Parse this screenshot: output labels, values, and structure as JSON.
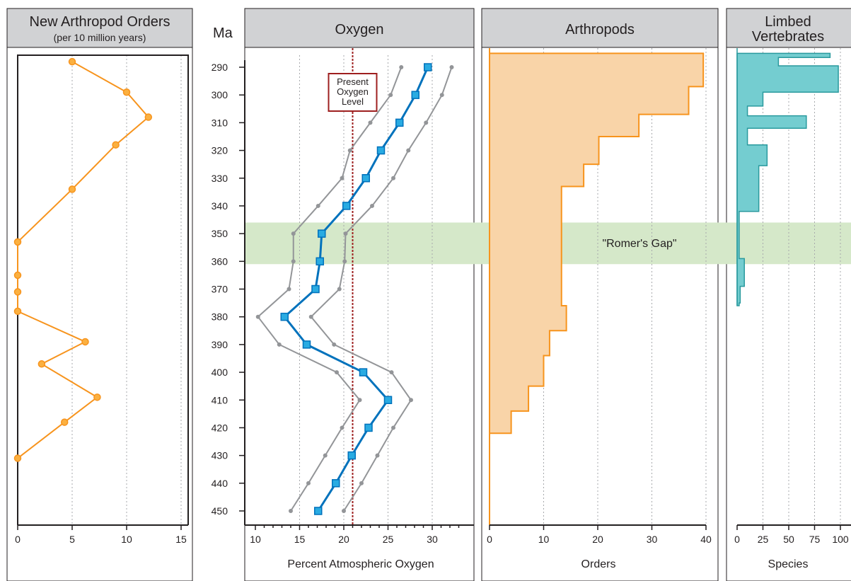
{
  "depth_label": "Ma",
  "gap_label": "\"Romer's Gap\"",
  "gap_range": [
    346,
    361
  ],
  "ages": [
    290,
    300,
    310,
    320,
    330,
    340,
    350,
    360,
    370,
    380,
    390,
    400,
    410,
    420,
    430,
    440,
    450
  ],
  "colors": {
    "arthropod_orders_line": "#f7941d",
    "arthropod_orders_marker": "#fbb040",
    "oxygen_line": "#0072bc",
    "oxygen_marker": "#29abe2",
    "oxygen_bounds": "#939598",
    "present_oxygen_line": "#9e1f1f",
    "arthropods_fill": "#f9d4a8",
    "arthropods_stroke": "#f7941d",
    "vertebrates_fill": "#74cdd0",
    "vertebrates_stroke": "#2a9a9e",
    "gap_band": "#d5e8c9",
    "header_fill": "#d1d2d4"
  },
  "chart_data": [
    {
      "id": "new-orders",
      "type": "line",
      "title": "New Arthropod Orders",
      "subtitle": "(per 10 million years)",
      "xlabel": "",
      "xlim": [
        0,
        15
      ],
      "xticks": [
        0,
        5,
        10,
        15
      ],
      "ylim": [
        285,
        455
      ],
      "y_reversed": true,
      "series": [
        {
          "points": [
            {
              "x": 5,
              "y": 288
            },
            {
              "x": 10,
              "y": 299
            },
            {
              "x": 12,
              "y": 308
            },
            {
              "x": 9,
              "y": 318
            },
            {
              "x": 5,
              "y": 334
            },
            {
              "x": 0,
              "y": 353
            },
            {
              "x": 0,
              "y": 365
            },
            {
              "x": 0,
              "y": 371
            },
            {
              "x": 0,
              "y": 378
            },
            {
              "x": 6.2,
              "y": 389
            },
            {
              "x": 2.2,
              "y": 397
            },
            {
              "x": 7.3,
              "y": 409
            },
            {
              "x": 4.3,
              "y": 418
            },
            {
              "x": 0,
              "y": 431
            }
          ]
        }
      ]
    },
    {
      "id": "oxygen",
      "type": "line",
      "title": "Oxygen",
      "xlabel": "Percent Atmospheric Oxygen",
      "xlim": [
        10,
        33
      ],
      "xticks": [
        10,
        15,
        20,
        25,
        30
      ],
      "ylim": [
        285,
        455
      ],
      "y_reversed": true,
      "yticks": [
        290,
        300,
        310,
        320,
        330,
        340,
        350,
        360,
        370,
        380,
        390,
        400,
        410,
        420,
        430,
        440,
        450
      ],
      "present_level": 21,
      "present_label": [
        "Present",
        "Oxygen",
        "Level"
      ],
      "series": [
        {
          "role": "estimate",
          "points": [
            {
              "x": 29.5,
              "y": 290
            },
            {
              "x": 28.1,
              "y": 300
            },
            {
              "x": 26.3,
              "y": 310
            },
            {
              "x": 24.2,
              "y": 320
            },
            {
              "x": 22.5,
              "y": 330
            },
            {
              "x": 20.3,
              "y": 340
            },
            {
              "x": 17.5,
              "y": 350
            },
            {
              "x": 17.3,
              "y": 360
            },
            {
              "x": 16.8,
              "y": 370
            },
            {
              "x": 13.3,
              "y": 380
            },
            {
              "x": 15.8,
              "y": 390
            },
            {
              "x": 22.2,
              "y": 400
            },
            {
              "x": 25.0,
              "y": 410
            },
            {
              "x": 22.8,
              "y": 420
            },
            {
              "x": 20.9,
              "y": 430
            },
            {
              "x": 19.1,
              "y": 440
            },
            {
              "x": 17.1,
              "y": 450
            }
          ]
        },
        {
          "role": "lower",
          "points": [
            {
              "x": 26.5,
              "y": 290
            },
            {
              "x": 25.3,
              "y": 300
            },
            {
              "x": 23.0,
              "y": 310
            },
            {
              "x": 20.7,
              "y": 320
            },
            {
              "x": 19.8,
              "y": 330
            },
            {
              "x": 17.1,
              "y": 340
            },
            {
              "x": 14.3,
              "y": 350
            },
            {
              "x": 14.3,
              "y": 360
            },
            {
              "x": 13.8,
              "y": 370
            },
            {
              "x": 10.3,
              "y": 380
            },
            {
              "x": 12.7,
              "y": 390
            },
            {
              "x": 19.2,
              "y": 400
            },
            {
              "x": 21.8,
              "y": 410
            },
            {
              "x": 19.8,
              "y": 420
            },
            {
              "x": 17.9,
              "y": 430
            },
            {
              "x": 16.0,
              "y": 440
            },
            {
              "x": 14.0,
              "y": 450
            }
          ]
        },
        {
          "role": "upper",
          "points": [
            {
              "x": 32.2,
              "y": 290
            },
            {
              "x": 31.1,
              "y": 300
            },
            {
              "x": 29.3,
              "y": 310
            },
            {
              "x": 27.3,
              "y": 320
            },
            {
              "x": 25.6,
              "y": 330
            },
            {
              "x": 23.2,
              "y": 340
            },
            {
              "x": 20.2,
              "y": 350
            },
            {
              "x": 20.1,
              "y": 360
            },
            {
              "x": 19.5,
              "y": 370
            },
            {
              "x": 16.3,
              "y": 380
            },
            {
              "x": 18.9,
              "y": 390
            },
            {
              "x": 25.4,
              "y": 400
            },
            {
              "x": 27.6,
              "y": 410
            },
            {
              "x": 25.6,
              "y": 420
            },
            {
              "x": 23.8,
              "y": 430
            },
            {
              "x": 22.0,
              "y": 440
            },
            {
              "x": 20.0,
              "y": 450
            }
          ]
        }
      ]
    },
    {
      "id": "arthropods",
      "type": "area",
      "title": "Arthropods",
      "xlabel": "Orders",
      "xlim": [
        0,
        40
      ],
      "xticks": [
        0,
        10,
        20,
        30,
        40
      ],
      "ylim": [
        285,
        455
      ],
      "y_reversed": true,
      "steps": [
        {
          "top": 285,
          "value": 39.5
        },
        {
          "top": 297,
          "value": 36.8
        },
        {
          "top": 307,
          "value": 27.6
        },
        {
          "top": 315,
          "value": 20.2
        },
        {
          "top": 325,
          "value": 17.4
        },
        {
          "top": 333,
          "value": 13.3
        },
        {
          "top": 376,
          "value": 14.2
        },
        {
          "top": 385,
          "value": 11.1
        },
        {
          "top": 394,
          "value": 10.0
        },
        {
          "top": 405,
          "value": 7.2
        },
        {
          "top": 414,
          "value": 4.0
        },
        {
          "top": 422,
          "value": 0
        }
      ]
    },
    {
      "id": "vertebrates",
      "type": "bar",
      "title": [
        "Limbed",
        "Vertebrates"
      ],
      "xlabel": "Species",
      "xlim": [
        0,
        100
      ],
      "xticks": [
        0,
        25,
        50,
        75,
        100
      ],
      "ylim": [
        285,
        455
      ],
      "y_reversed": true,
      "steps": [
        {
          "top": 285,
          "value": 90
        },
        {
          "top": 286.5,
          "value": 40
        },
        {
          "top": 289.5,
          "value": 98
        },
        {
          "top": 299,
          "value": 25
        },
        {
          "top": 304,
          "value": 10
        },
        {
          "top": 307.5,
          "value": 67
        },
        {
          "top": 312,
          "value": 10
        },
        {
          "top": 318,
          "value": 29
        },
        {
          "top": 325.5,
          "value": 21
        },
        {
          "top": 342,
          "value": 2
        },
        {
          "top": 359,
          "value": 7
        },
        {
          "top": 369,
          "value": 3
        },
        {
          "top": 375,
          "value": 2
        },
        {
          "top": 376,
          "value": 0
        }
      ]
    }
  ]
}
